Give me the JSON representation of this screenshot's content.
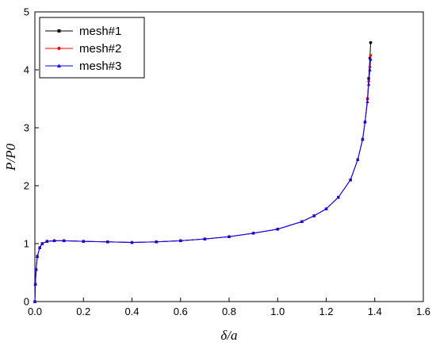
{
  "chart_data": {
    "type": "line",
    "title": "",
    "xlabel": "δ/a",
    "ylabel": "P/P0",
    "xlim": [
      0.0,
      1.6
    ],
    "ylim": [
      0,
      5
    ],
    "x_ticks": [
      "0.0",
      "0.2",
      "0.4",
      "0.6",
      "0.8",
      "1.0",
      "1.2",
      "1.4",
      "1.6"
    ],
    "y_ticks": [
      "0",
      "1",
      "2",
      "3",
      "4",
      "5"
    ],
    "grid": false,
    "legend_position": "top-left",
    "series": [
      {
        "name": "mesh#1",
        "color": "#000000",
        "marker": "square",
        "x": [
          0.0,
          0.002,
          0.005,
          0.01,
          0.02,
          0.03,
          0.05,
          0.08,
          0.12,
          0.2,
          0.3,
          0.4,
          0.5,
          0.6,
          0.7,
          0.8,
          0.9,
          1.0,
          1.1,
          1.15,
          1.2,
          1.25,
          1.3,
          1.33,
          1.35,
          1.36,
          1.37,
          1.375,
          1.38,
          1.383
        ],
        "y": [
          0.0,
          0.3,
          0.55,
          0.78,
          0.93,
          1.0,
          1.04,
          1.05,
          1.05,
          1.04,
          1.03,
          1.02,
          1.03,
          1.05,
          1.08,
          1.12,
          1.18,
          1.25,
          1.38,
          1.48,
          1.6,
          1.8,
          2.1,
          2.45,
          2.8,
          3.1,
          3.5,
          3.85,
          4.2,
          4.47
        ]
      },
      {
        "name": "mesh#2",
        "color": "#ff0000",
        "marker": "circle",
        "x": [
          0.0,
          0.002,
          0.005,
          0.01,
          0.02,
          0.03,
          0.05,
          0.08,
          0.12,
          0.2,
          0.3,
          0.4,
          0.5,
          0.6,
          0.7,
          0.8,
          0.9,
          1.0,
          1.1,
          1.15,
          1.2,
          1.25,
          1.3,
          1.33,
          1.35,
          1.36,
          1.37,
          1.375,
          1.38,
          1.383
        ],
        "y": [
          0.0,
          0.3,
          0.55,
          0.78,
          0.93,
          1.0,
          1.04,
          1.05,
          1.05,
          1.04,
          1.03,
          1.02,
          1.03,
          1.05,
          1.08,
          1.12,
          1.18,
          1.25,
          1.38,
          1.48,
          1.6,
          1.8,
          2.1,
          2.45,
          2.8,
          3.1,
          3.5,
          3.8,
          4.05,
          4.25
        ]
      },
      {
        "name": "mesh#3",
        "color": "#0000ff",
        "marker": "triangle",
        "x": [
          0.0,
          0.002,
          0.005,
          0.01,
          0.02,
          0.03,
          0.05,
          0.08,
          0.12,
          0.2,
          0.3,
          0.4,
          0.5,
          0.6,
          0.7,
          0.8,
          0.9,
          1.0,
          1.1,
          1.15,
          1.2,
          1.25,
          1.3,
          1.33,
          1.35,
          1.36,
          1.37,
          1.375,
          1.38,
          1.383
        ],
        "y": [
          0.0,
          0.3,
          0.55,
          0.78,
          0.93,
          1.0,
          1.04,
          1.05,
          1.05,
          1.04,
          1.03,
          1.02,
          1.03,
          1.05,
          1.08,
          1.12,
          1.18,
          1.25,
          1.38,
          1.48,
          1.6,
          1.8,
          2.1,
          2.45,
          2.8,
          3.1,
          3.45,
          3.75,
          4.0,
          4.18
        ]
      }
    ]
  }
}
